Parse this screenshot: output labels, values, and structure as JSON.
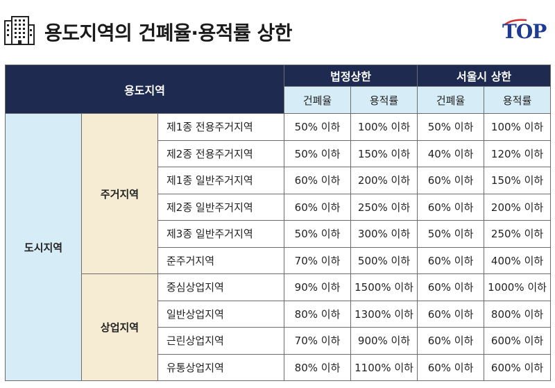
{
  "header": {
    "title": "용도지역의 건폐율·용적률 상한",
    "logo_text": "TOP",
    "icon": "building-icon",
    "logo_color": "#1f3a93",
    "logo_accent": "#d32f2f"
  },
  "table": {
    "zone_header": "용도지역",
    "group_legal": "법정상한",
    "group_seoul": "서울시 상한",
    "col_bcr": "건폐율",
    "col_far": "용적률",
    "city_label": "도시지역",
    "groups": [
      {
        "label": "주거지역",
        "rows": [
          {
            "zone": "제1종 전용주거지역",
            "legal_bcr": "50% 이하",
            "legal_far": "100% 이하",
            "seoul_bcr": "50% 이하",
            "seoul_far": "100% 이하"
          },
          {
            "zone": "제2종 전용주거지역",
            "legal_bcr": "50% 이하",
            "legal_far": "150% 이하",
            "seoul_bcr": "40% 이하",
            "seoul_far": "120% 이하"
          },
          {
            "zone": "제1종 일반주거지역",
            "legal_bcr": "60% 이하",
            "legal_far": "200% 이하",
            "seoul_bcr": "60% 이하",
            "seoul_far": "150% 이하"
          },
          {
            "zone": "제2종 일반주거지역",
            "legal_bcr": "60% 이하",
            "legal_far": "250% 이하",
            "seoul_bcr": "60% 이하",
            "seoul_far": "200% 이하"
          },
          {
            "zone": "제3종 일반주거지역",
            "legal_bcr": "50% 이하",
            "legal_far": "300% 이하",
            "seoul_bcr": "50% 이하",
            "seoul_far": "250% 이하"
          },
          {
            "zone": "준주거지역",
            "legal_bcr": "70% 이하",
            "legal_far": "500% 이하",
            "seoul_bcr": "60% 이하",
            "seoul_far": "400% 이하"
          }
        ]
      },
      {
        "label": "상업지역",
        "rows": [
          {
            "zone": "중심상업지역",
            "legal_bcr": "90% 이하",
            "legal_far": "1500% 이하",
            "seoul_bcr": "60% 이하",
            "seoul_far": "1000% 이하"
          },
          {
            "zone": "일반상업지역",
            "legal_bcr": "80% 이하",
            "legal_far": "1300% 이하",
            "seoul_bcr": "60% 이하",
            "seoul_far": "800% 이하"
          },
          {
            "zone": "근린상업지역",
            "legal_bcr": "70% 이하",
            "legal_far": "900% 이하",
            "seoul_bcr": "60% 이하",
            "seoul_far": "600% 이하"
          },
          {
            "zone": "유통상업지역",
            "legal_bcr": "80% 이하",
            "legal_far": "1100% 이하",
            "seoul_bcr": "60% 이하",
            "seoul_far": "600% 이하"
          }
        ]
      }
    ]
  }
}
